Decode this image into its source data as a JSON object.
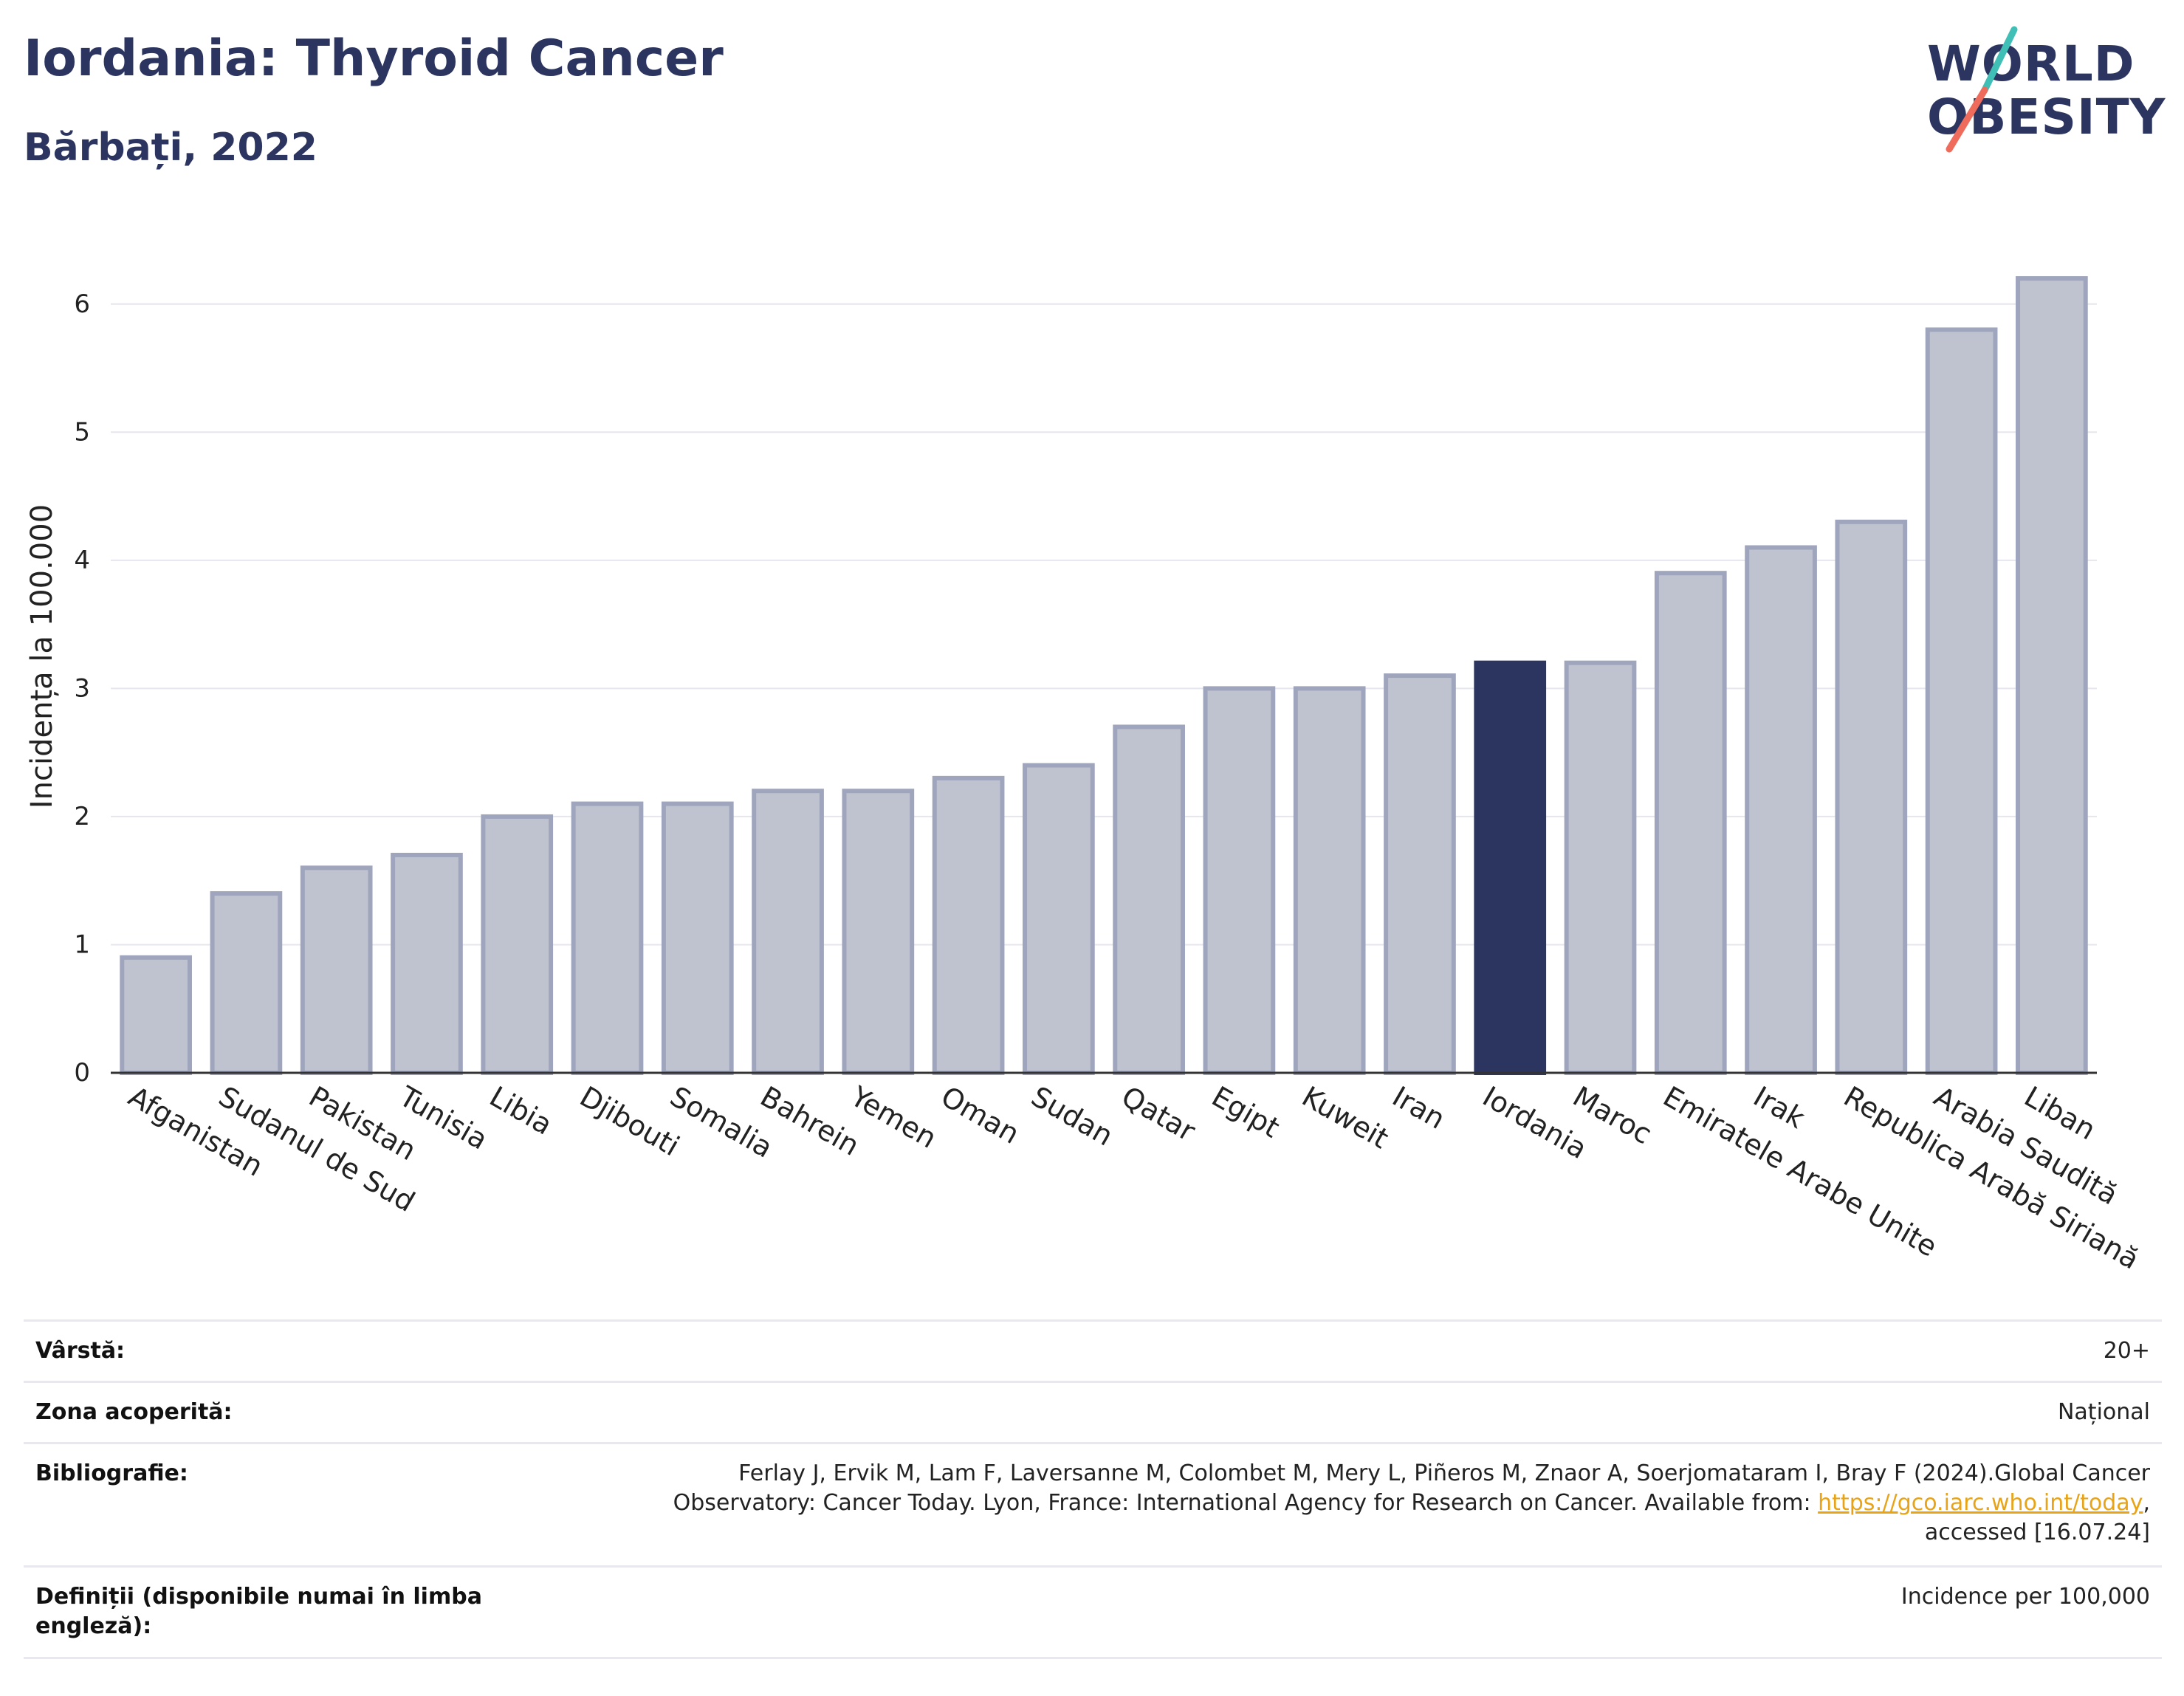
{
  "header": {
    "title": "Iordania: Thyroid Cancer",
    "subtitle": "Bărbați, 2022"
  },
  "logo": {
    "line1": "WORLD",
    "line2": "OBESITY",
    "colors": {
      "text": "#2b3560",
      "teal": "#3fbfb5",
      "coral": "#ef6b5b"
    }
  },
  "colors": {
    "bar_default": "#bfc2cf",
    "bar_default_stroke": "#9fa5bd",
    "bar_highlight": "#2b3560",
    "axis_text": "#222222",
    "grid": "#e6e6ee",
    "title": "#2b3560"
  },
  "chart_data": {
    "type": "bar",
    "title": "Iordania: Thyroid Cancer",
    "subtitle": "Bărbați, 2022",
    "xlabel": "",
    "ylabel": "Incidența la 100.000",
    "ylim": [
      0,
      6.5
    ],
    "yticks": [
      0,
      1,
      2,
      3,
      4,
      5,
      6
    ],
    "grid": true,
    "highlight": "Iordania",
    "categories": [
      "Afganistan",
      "Sudanul de Sud",
      "Pakistan",
      "Tunisia",
      "Libia",
      "Djibouti",
      "Somalia",
      "Bahrein",
      "Yemen",
      "Oman",
      "Sudan",
      "Qatar",
      "Egipt",
      "Kuweit",
      "Iran",
      "Iordania",
      "Maroc",
      "Emiratele Arabe Unite",
      "Irak",
      "Republica Arabă Siriană",
      "Arabia Saudită",
      "Liban"
    ],
    "values": [
      0.9,
      1.4,
      1.6,
      1.7,
      2.0,
      2.1,
      2.1,
      2.2,
      2.2,
      2.3,
      2.4,
      2.7,
      3.0,
      3.0,
      3.1,
      3.2,
      3.2,
      3.9,
      4.1,
      4.3,
      5.8,
      6.2
    ]
  },
  "meta": {
    "age_label": "Vârstă:",
    "age_value": "20+",
    "coverage_label": "Zona acoperită:",
    "coverage_value": "Național",
    "bibliography_label": "Bibliografie:",
    "bibliography_text_1": "Ferlay J, Ervik M, Lam F, Laversanne M, Colombet M, Mery L, Piñeros M, Znaor A, Soerjomataram I, Bray F (2024).Global Cancer",
    "bibliography_text_2": "Observatory: Cancer Today. Lyon, France: International Agency for Research on Cancer. Available from: ",
    "bibliography_link": "https://gco.iarc.who.int/today",
    "bibliography_text_3": ",",
    "bibliography_text_4": "accessed [16.07.24]",
    "definitions_label": "Definiții (disponibile numai în limba engleză):",
    "definitions_value": "Incidence per 100,000"
  }
}
